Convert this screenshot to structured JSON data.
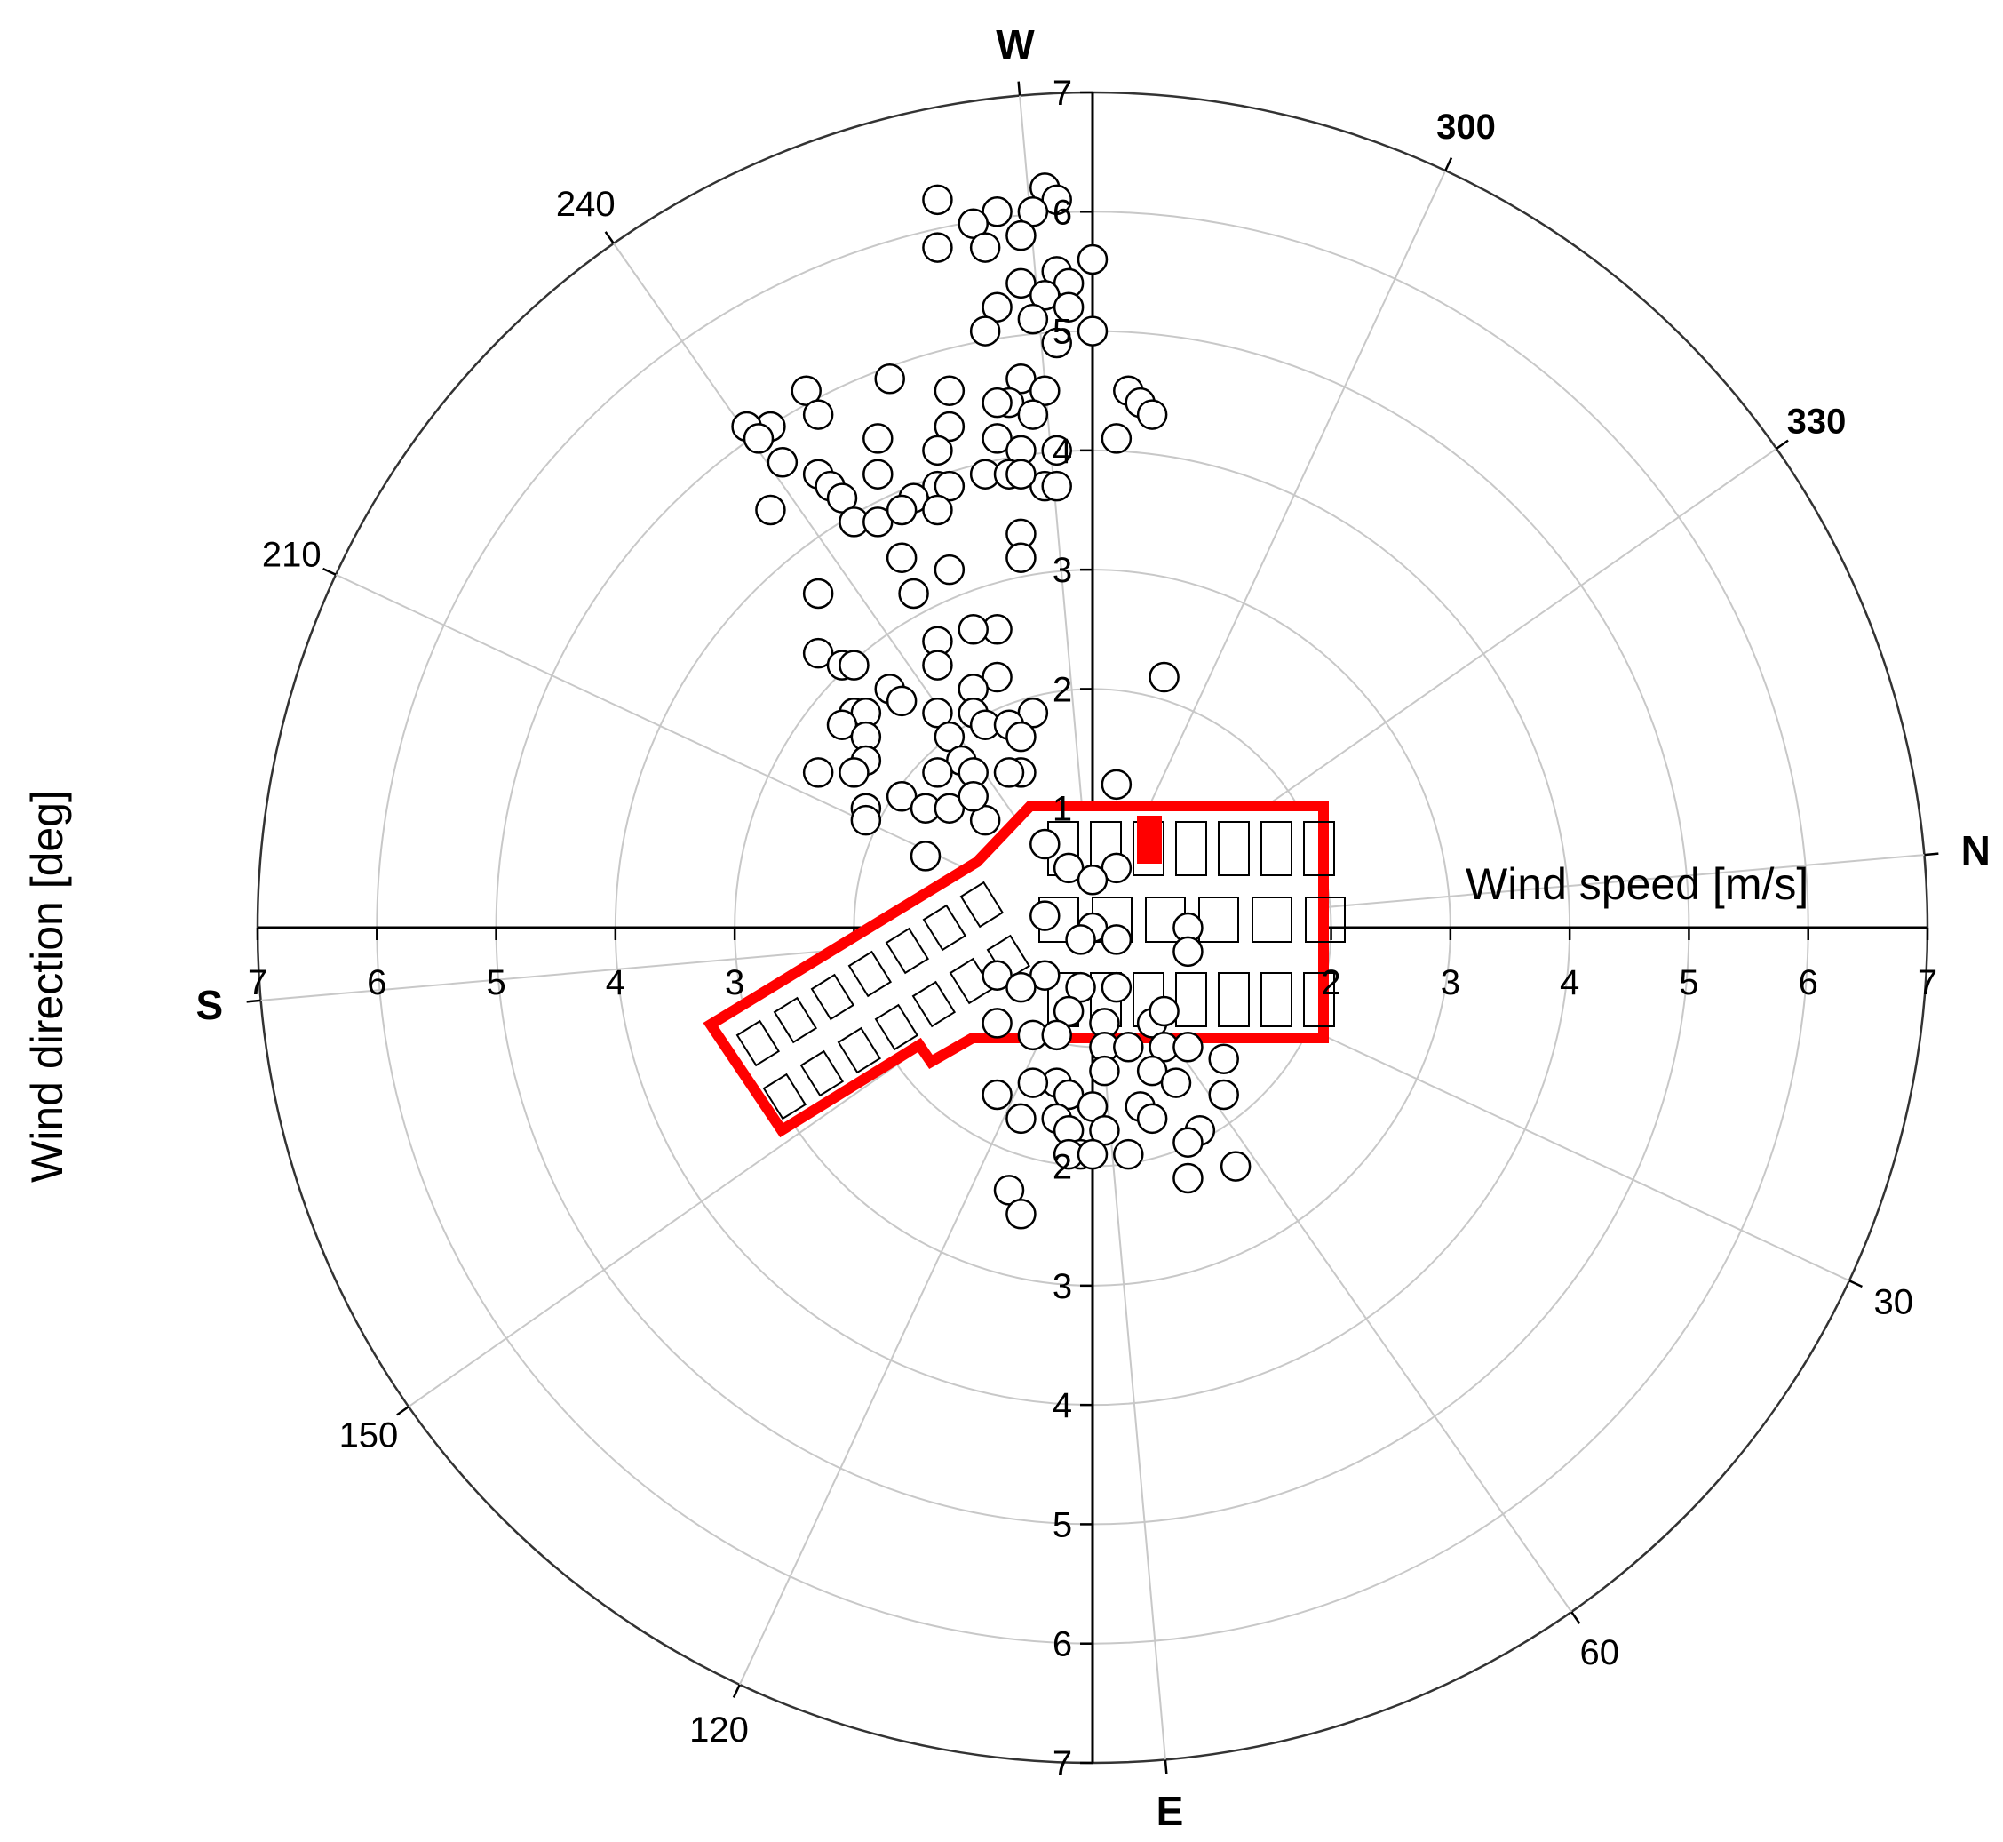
{
  "chart_data": {
    "type": "scatter",
    "subtype": "polar",
    "xlabel": "Wind speed [m/s]",
    "ylabel": "Wind direction [deg]",
    "radial_range": [
      0,
      7
    ],
    "radial_ticks": [
      "7",
      "6",
      "5",
      "4",
      "3",
      "2",
      "1"
    ],
    "radial_ticks_right": [
      "2",
      "3",
      "4",
      "5",
      "6",
      "7"
    ],
    "radial_ticks_top": [
      "7",
      "6",
      "5",
      "4",
      "3",
      "2",
      "1"
    ],
    "radial_ticks_bottom": [
      "2",
      "3",
      "4",
      "5",
      "6",
      "7"
    ],
    "grid": true,
    "angle_labels": [
      {
        "deg": 300,
        "label": "300",
        "bold": true
      },
      {
        "deg": 330,
        "label": "330",
        "bold": true
      },
      {
        "deg": 30,
        "label": "30",
        "bold": false
      },
      {
        "deg": 60,
        "label": "60",
        "bold": false
      },
      {
        "deg": 120,
        "label": "120",
        "bold": false
      },
      {
        "deg": 150,
        "label": "150",
        "bold": false
      },
      {
        "deg": 210,
        "label": "210",
        "bold": false
      },
      {
        "deg": 240,
        "label": "240",
        "bold": false
      }
    ],
    "compass_labels": [
      {
        "deg": 0,
        "label": "N"
      },
      {
        "deg": 90,
        "label": "E"
      },
      {
        "deg": 180,
        "label": "S"
      },
      {
        "deg": 270,
        "label": "W"
      }
    ],
    "points_xy": [
      [
        -0.4,
        6.2
      ],
      [
        -0.3,
        6.1
      ],
      [
        -0.5,
        6.0
      ],
      [
        -0.8,
        6.0
      ],
      [
        -1.0,
        5.9
      ],
      [
        -1.3,
        6.1
      ],
      [
        -0.6,
        5.8
      ],
      [
        -0.9,
        5.7
      ],
      [
        -1.3,
        5.7
      ],
      [
        0.0,
        5.6
      ],
      [
        -0.3,
        5.5
      ],
      [
        -0.6,
        5.4
      ],
      [
        -0.2,
        5.4
      ],
      [
        -0.4,
        5.3
      ],
      [
        -0.8,
        5.2
      ],
      [
        -0.2,
        5.2
      ],
      [
        -0.5,
        5.1
      ],
      [
        0.0,
        5.0
      ],
      [
        -0.9,
        5.0
      ],
      [
        -0.3,
        4.9
      ],
      [
        -0.6,
        4.6
      ],
      [
        -0.4,
        4.5
      ],
      [
        -0.7,
        4.4
      ],
      [
        -1.2,
        4.5
      ],
      [
        -0.8,
        4.4
      ],
      [
        -0.5,
        4.3
      ],
      [
        -1.7,
        4.6
      ],
      [
        -2.4,
        4.5
      ],
      [
        -2.3,
        4.3
      ],
      [
        -2.7,
        4.2
      ],
      [
        -2.9,
        4.2
      ],
      [
        -2.8,
        4.1
      ],
      [
        -1.2,
        4.2
      ],
      [
        -0.8,
        4.1
      ],
      [
        -0.6,
        4.0
      ],
      [
        -0.3,
        4.0
      ],
      [
        -1.3,
        4.0
      ],
      [
        -1.8,
        4.1
      ],
      [
        -2.6,
        3.9
      ],
      [
        -2.3,
        3.8
      ],
      [
        -2.2,
        3.7
      ],
      [
        -1.8,
        3.8
      ],
      [
        -1.3,
        3.7
      ],
      [
        -0.9,
        3.8
      ],
      [
        -0.7,
        3.8
      ],
      [
        -0.4,
        3.7
      ],
      [
        -0.6,
        3.8
      ],
      [
        -0.3,
        3.7
      ],
      [
        -1.2,
        3.7
      ],
      [
        -1.5,
        3.6
      ],
      [
        -2.1,
        3.6
      ],
      [
        -2.0,
        3.4
      ],
      [
        -1.8,
        3.4
      ],
      [
        -2.7,
        3.5
      ],
      [
        -1.6,
        3.5
      ],
      [
        -1.3,
        3.5
      ],
      [
        -0.6,
        3.3
      ],
      [
        -0.6,
        3.1
      ],
      [
        -1.6,
        3.1
      ],
      [
        -1.2,
        3.0
      ],
      [
        -2.3,
        2.8
      ],
      [
        -1.5,
        2.8
      ],
      [
        -0.8,
        2.5
      ],
      [
        -1.0,
        2.5
      ],
      [
        -1.3,
        2.4
      ],
      [
        -2.3,
        2.3
      ],
      [
        -2.1,
        2.2
      ],
      [
        -2.0,
        2.2
      ],
      [
        -1.3,
        2.2
      ],
      [
        -0.8,
        2.1
      ],
      [
        -1.0,
        2.0
      ],
      [
        -1.7,
        2.0
      ],
      [
        -2.0,
        1.8
      ],
      [
        -1.9,
        1.8
      ],
      [
        -1.6,
        1.9
      ],
      [
        -1.3,
        1.8
      ],
      [
        -1.0,
        1.8
      ],
      [
        -0.5,
        1.8
      ],
      [
        -0.9,
        1.7
      ],
      [
        -0.7,
        1.7
      ],
      [
        -2.1,
        1.7
      ],
      [
        -1.9,
        1.6
      ],
      [
        -1.2,
        1.6
      ],
      [
        -0.6,
        1.6
      ],
      [
        -1.9,
        1.4
      ],
      [
        -2.0,
        1.3
      ],
      [
        -2.3,
        1.3
      ],
      [
        -1.1,
        1.4
      ],
      [
        -1.3,
        1.3
      ],
      [
        -1.0,
        1.3
      ],
      [
        -0.6,
        1.3
      ],
      [
        -0.7,
        1.3
      ],
      [
        -1.6,
        1.1
      ],
      [
        -1.4,
        1.0
      ],
      [
        -1.2,
        1.0
      ],
      [
        -0.9,
        0.9
      ],
      [
        -1.0,
        1.1
      ],
      [
        -1.9,
        1.0
      ],
      [
        -1.9,
        0.9
      ],
      [
        0.2,
        1.2
      ],
      [
        0.6,
        2.1
      ],
      [
        0.3,
        4.5
      ],
      [
        0.4,
        4.4
      ],
      [
        0.5,
        4.3
      ],
      [
        0.2,
        4.1
      ],
      [
        -1.4,
        0.6
      ],
      [
        -0.4,
        0.7
      ],
      [
        -0.2,
        0.5
      ],
      [
        0.2,
        0.5
      ],
      [
        0.0,
        0.4
      ],
      [
        -0.4,
        0.1
      ],
      [
        0.0,
        0.0
      ],
      [
        -0.1,
        -0.1
      ],
      [
        0.2,
        -0.1
      ],
      [
        0.8,
        0.0
      ],
      [
        0.8,
        -0.2
      ],
      [
        0.2,
        -0.5
      ],
      [
        -0.1,
        -0.5
      ],
      [
        -0.4,
        -0.4
      ],
      [
        -0.8,
        -0.4
      ],
      [
        -0.6,
        -0.5
      ],
      [
        -0.2,
        -0.7
      ],
      [
        0.1,
        -0.8
      ],
      [
        0.5,
        -0.8
      ],
      [
        0.6,
        -0.7
      ],
      [
        -0.8,
        -0.8
      ],
      [
        -0.5,
        -0.9
      ],
      [
        -0.3,
        -0.9
      ],
      [
        0.1,
        -1.0
      ],
      [
        0.3,
        -1.0
      ],
      [
        0.6,
        -1.0
      ],
      [
        0.8,
        -1.0
      ],
      [
        1.1,
        -1.1
      ],
      [
        0.5,
        -1.2
      ],
      [
        0.1,
        -1.2
      ],
      [
        -0.3,
        -1.3
      ],
      [
        -0.5,
        -1.3
      ],
      [
        -0.2,
        -1.4
      ],
      [
        0.0,
        -1.5
      ],
      [
        0.4,
        -1.5
      ],
      [
        0.7,
        -1.3
      ],
      [
        1.1,
        -1.4
      ],
      [
        -0.8,
        -1.4
      ],
      [
        -0.6,
        -1.6
      ],
      [
        -0.3,
        -1.6
      ],
      [
        -0.2,
        -1.7
      ],
      [
        0.1,
        -1.7
      ],
      [
        0.5,
        -1.6
      ],
      [
        0.9,
        -1.7
      ],
      [
        0.8,
        -1.8
      ],
      [
        1.2,
        -2.0
      ],
      [
        -0.1,
        -1.9
      ],
      [
        -0.2,
        -1.9
      ],
      [
        0.3,
        -1.9
      ],
      [
        -0.7,
        -2.2
      ],
      [
        -0.6,
        -2.4
      ],
      [
        0.0,
        -1.9
      ],
      [
        0.8,
        -2.1
      ]
    ]
  },
  "building_overlay": {
    "stroke_color": "#ff0000",
    "line_color": "#000000"
  },
  "colors": {
    "grid": "#c8c8c8",
    "axis": "#000000",
    "outer_circle": "#333333",
    "marker_fill": "#ffffff",
    "marker_stroke": "#000000"
  }
}
